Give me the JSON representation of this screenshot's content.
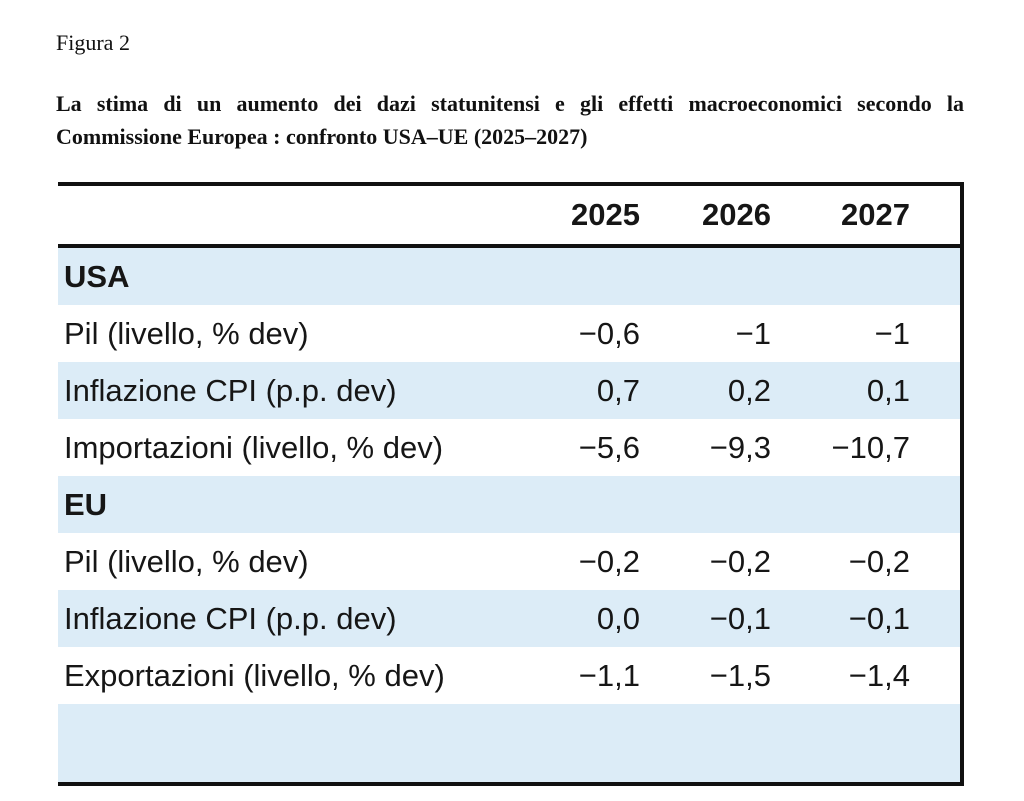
{
  "figure": {
    "label": "Figura 2",
    "title": "La stima di un aumento dei dazi statunitensi e gli effetti macroeconomici secondo la Commissione Europea : confronto USA–UE (2025–2027)"
  },
  "table": {
    "columns": [
      "2025",
      "2026",
      "2027"
    ],
    "sections": [
      {
        "name": "USA",
        "rows": [
          {
            "label": "Pil (livello, % dev)",
            "values": [
              "−0,6",
              "−1",
              "−1"
            ]
          },
          {
            "label": "Inflazione CPI (p.p. dev)",
            "values": [
              "0,7",
              "0,2",
              "0,1"
            ]
          },
          {
            "label": "Importazioni (livello, % dev)",
            "values": [
              "−5,6",
              "−9,3",
              "−10,7"
            ]
          }
        ]
      },
      {
        "name": "EU",
        "rows": [
          {
            "label": "Pil (livello, % dev)",
            "values": [
              "−0,2",
              "−0,2",
              "−0,2"
            ]
          },
          {
            "label": "Inflazione CPI (p.p. dev)",
            "values": [
              "0,0",
              "−0,1",
              "−0,1"
            ]
          },
          {
            "label": "Exportazioni (livello, % dev)",
            "values": [
              "−1,1",
              "−1,5",
              "−1,4"
            ]
          }
        ]
      }
    ]
  },
  "colors": {
    "band_blue": "#dcecf7",
    "border": "#111111"
  }
}
